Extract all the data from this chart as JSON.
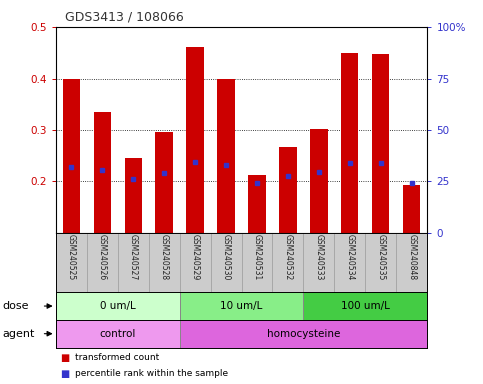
{
  "title": "GDS3413 / 108066",
  "samples": [
    "GSM240525",
    "GSM240526",
    "GSM240527",
    "GSM240528",
    "GSM240529",
    "GSM240530",
    "GSM240531",
    "GSM240532",
    "GSM240533",
    "GSM240534",
    "GSM240535",
    "GSM240848"
  ],
  "bar_tops": [
    0.4,
    0.335,
    0.245,
    0.297,
    0.462,
    0.4,
    0.213,
    0.267,
    0.302,
    0.45,
    0.448,
    0.193
  ],
  "bar_bottom": 0.1,
  "blue_markers": [
    0.228,
    0.222,
    0.204,
    0.216,
    0.238,
    0.232,
    0.197,
    0.21,
    0.218,
    0.236,
    0.236,
    0.197
  ],
  "ylim_left": [
    0.1,
    0.5
  ],
  "ylim_right": [
    0,
    100
  ],
  "yticks_left": [
    0.2,
    0.3,
    0.4,
    0.5
  ],
  "ytick_labels_left": [
    "0.2",
    "0.3",
    "0.4",
    "0.5"
  ],
  "yticks_right": [
    0,
    25,
    50,
    75,
    100
  ],
  "ytick_labels_right": [
    "0",
    "25",
    "50",
    "75",
    "100%"
  ],
  "bar_color": "#cc0000",
  "blue_color": "#3333cc",
  "dose_groups": [
    {
      "label": "0 um/L",
      "start": 0,
      "end": 4,
      "color": "#ccffcc"
    },
    {
      "label": "10 um/L",
      "start": 4,
      "end": 8,
      "color": "#88ee88"
    },
    {
      "label": "100 um/L",
      "start": 8,
      "end": 12,
      "color": "#44cc44"
    }
  ],
  "agent_groups": [
    {
      "label": "control",
      "start": 0,
      "end": 4,
      "color": "#ee99ee"
    },
    {
      "label": "homocysteine",
      "start": 4,
      "end": 12,
      "color": "#dd66dd"
    }
  ],
  "dose_label": "dose",
  "agent_label": "agent",
  "legend_bar": "transformed count",
  "legend_marker": "percentile rank within the sample",
  "background_color": "#ffffff",
  "label_area_bg": "#cccccc",
  "plot_bg": "#ffffff"
}
